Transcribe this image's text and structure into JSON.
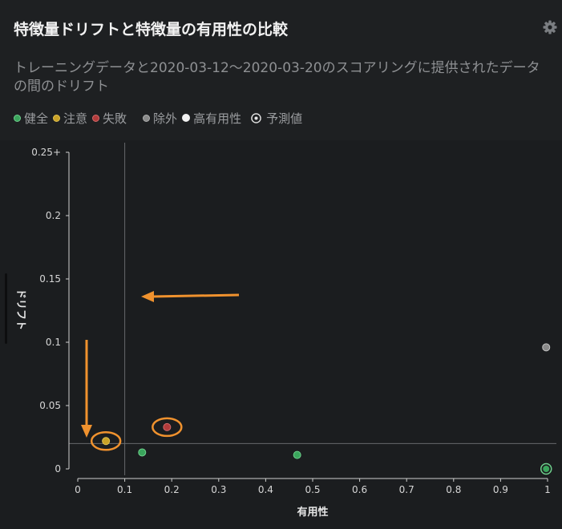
{
  "header": {
    "title": "特徴量ドリフトと特徴量の有用性の比較",
    "subtitle": "トレーニングデータと2020-03-12〜2020-03-20のスコアリングに提供されたデータの間のドリフト",
    "settings_icon": "gear-icon"
  },
  "legend": [
    {
      "label": "健全",
      "color": "#3aa55c",
      "kind": "dot"
    },
    {
      "label": "注意",
      "color": "#c9a227",
      "kind": "dot"
    },
    {
      "label": "失敗",
      "color": "#b23b3b",
      "kind": "dot"
    },
    {
      "label": "除外",
      "color": "#8a8a8a",
      "kind": "dot"
    },
    {
      "label": "高有用性",
      "color": "#f2f2f2",
      "kind": "dot"
    },
    {
      "label": "予測値",
      "color": "#e6e6e6",
      "kind": "target"
    }
  ],
  "chart_data": {
    "type": "scatter",
    "xlabel": "有用性",
    "ylabel": "ドリフト",
    "xlim": [
      0,
      1
    ],
    "ylim": [
      0,
      0.25
    ],
    "x_ticks": [
      "0",
      "0.1",
      "0.2",
      "0.3",
      "0.4",
      "0.5",
      "0.6",
      "0.7",
      "0.8",
      "0.9",
      "1"
    ],
    "y_ticks": [
      "0",
      "0.05",
      "0.1",
      "0.15",
      "0.2",
      "0.25+"
    ],
    "thresholds": {
      "x": 0.1,
      "y": 0.02
    },
    "points": [
      {
        "x": 0.06,
        "y": 0.022,
        "status": "注意",
        "highlighted": true
      },
      {
        "x": 0.137,
        "y": 0.013,
        "status": "健全",
        "highlighted": false
      },
      {
        "x": 0.19,
        "y": 0.033,
        "status": "失敗",
        "highlighted": true
      },
      {
        "x": 0.467,
        "y": 0.011,
        "status": "健全",
        "highlighted": false
      },
      {
        "x": 0.997,
        "y": 0.096,
        "status": "除外",
        "highlighted": false
      },
      {
        "x": 0.997,
        "y": 0.0,
        "status": "健全",
        "target": true
      }
    ],
    "colors": {
      "健全": "#3aa55c",
      "注意": "#c9a227",
      "失敗": "#b23b3b",
      "除外": "#8a8a8a",
      "highlight": "#f0922e",
      "grid": "#66696c"
    }
  }
}
